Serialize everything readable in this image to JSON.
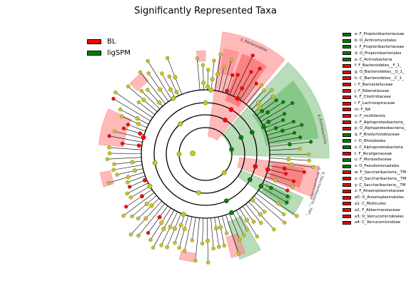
{
  "title": "Significantly Represented Taxa",
  "colors": {
    "BL": "#ff0000",
    "ligSPM": "#008000",
    "node": "#c8c814",
    "BL_shade": "#ff8080",
    "ligSPM_shade": "#80c080"
  },
  "groups": [
    {
      "name": "BL",
      "color": "#ff0000"
    },
    {
      "name": "ligSPM",
      "color": "#008000"
    }
  ],
  "keys": [
    {
      "code": "a",
      "text": "a: F_Propionibacteriaceae",
      "group": "ligSPM"
    },
    {
      "code": "b",
      "text": "b: O_Actinomycetales",
      "group": "ligSPM"
    },
    {
      "code": "c",
      "text": "c: F_Propionibacteriaceae",
      "group": "ligSPM"
    },
    {
      "code": "d",
      "text": "d: O_Propionibacteriales",
      "group": "ligSPM"
    },
    {
      "code": "e",
      "text": "e: C_Actinobacteria",
      "group": "ligSPM"
    },
    {
      "code": "f",
      "text": "f: F_Bacteroidetes__F_1_",
      "group": "BL"
    },
    {
      "code": "g",
      "text": "g: O_Bacteroidetes__O_1_",
      "group": "BL"
    },
    {
      "code": "h",
      "text": "h: C_Bacteroidetes__C_1_",
      "group": "BL"
    },
    {
      "code": "i",
      "text": "i: F_Barnesiellaceae",
      "group": "BL"
    },
    {
      "code": "j",
      "text": "j: F_Rikenellaceae",
      "group": "BL"
    },
    {
      "code": "k",
      "text": "k: F_Clostridiaceae",
      "group": "BL"
    },
    {
      "code": "l",
      "text": "l: F_Lachnospiraceae",
      "group": "BL"
    },
    {
      "code": "m",
      "text": "m: F_NA",
      "group": "BL"
    },
    {
      "code": "n",
      "text": "n: F_multifamily",
      "group": "BL"
    },
    {
      "code": "o",
      "text": "o: F_Alphaproteobacteria_",
      "group": "BL"
    },
    {
      "code": "p",
      "text": "p: O_Alphaproteobacteria_",
      "group": "BL"
    },
    {
      "code": "q",
      "text": "q: F_Bradyrhizobiaceae",
      "group": "ligSPM"
    },
    {
      "code": "r",
      "text": "r: O_Rhizobiales",
      "group": "ligSPM"
    },
    {
      "code": "s",
      "text": "s: C_Alphaproteobacteria",
      "group": "ligSPM"
    },
    {
      "code": "t",
      "text": "t: F_Alcaligenaceae",
      "group": "BL"
    },
    {
      "code": "u",
      "text": "u: F_Moraxellaceae",
      "group": "ligSPM"
    },
    {
      "code": "v",
      "text": "v: O_Pseudomonadales",
      "group": "ligSPM"
    },
    {
      "code": "w",
      "text": "w: F_Saccharibacteria__TM",
      "group": "BL"
    },
    {
      "code": "x",
      "text": "x: O_Saccharibacteria__TM",
      "group": "BL"
    },
    {
      "code": "y",
      "text": "y: C_Saccharibacteria__TM",
      "group": "BL"
    },
    {
      "code": "z",
      "text": "z: F_Anaeroplasmataceae",
      "group": "BL"
    },
    {
      "code": "a0",
      "text": "a0: O_Anaeroplasmatales",
      "group": "BL"
    },
    {
      "code": "a1",
      "text": "a1: C_Mollicutes",
      "group": "BL"
    },
    {
      "code": "a2",
      "text": "a2: F_Akkermansiaceae",
      "group": "BL"
    },
    {
      "code": "a3",
      "text": "a3: O_Verrucomicrobiales",
      "group": "BL"
    },
    {
      "code": "a4",
      "text": "a4: C_Verrucomicrobiae",
      "group": "BL"
    }
  ],
  "sector_labels": {
    "bacteroidetes": "p_Bacteroidetes",
    "actinobacteria": "p_Actinobacteria",
    "verrucomicrobia": "p_Verrucomicrobia",
    "tm7": "p_Saccharibacteria__TM7_"
  }
}
